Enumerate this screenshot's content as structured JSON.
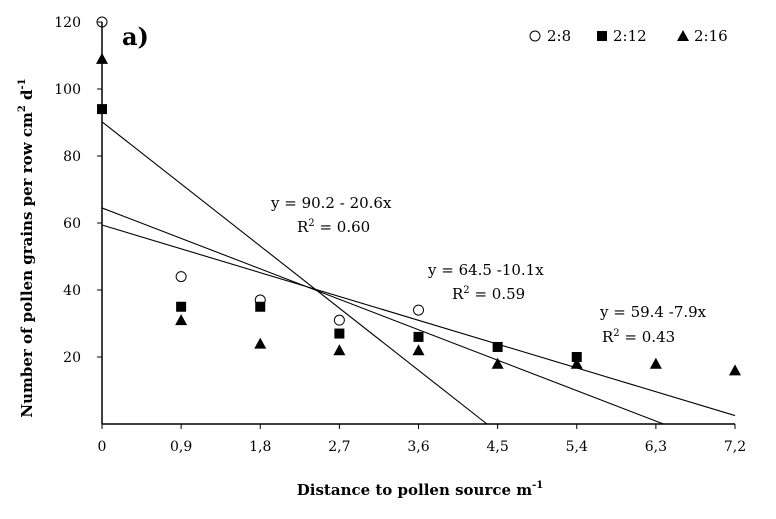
{
  "chart_data": {
    "type": "scatter",
    "panel_label": "a)",
    "xlabel": "Distance to pollen source m",
    "xlabel_sup": "-1",
    "ylabel_parts": [
      "Number of pollen grains per row cm",
      "2",
      " d",
      "-1"
    ],
    "x": [
      0,
      0.9,
      1.8,
      2.7,
      3.6,
      4.5,
      5.4,
      6.3,
      7.2
    ],
    "xtick_labels": [
      "0",
      "0,9",
      "1,8",
      "2,7",
      "3,6",
      "4,5",
      "5,4",
      "6,3",
      "7,2"
    ],
    "yticks": [
      20,
      40,
      60,
      80,
      100,
      120
    ],
    "ytick_labels": [
      "20",
      "40",
      "60",
      "80",
      "100",
      "120"
    ],
    "xlim": [
      0,
      7.2
    ],
    "ylim": [
      0,
      120
    ],
    "series": [
      {
        "name": "2:8",
        "marker": "circle-open",
        "points": [
          [
            0,
            120
          ],
          [
            0.9,
            44
          ],
          [
            1.8,
            37
          ],
          [
            2.7,
            31
          ],
          [
            3.6,
            34
          ]
        ]
      },
      {
        "name": "2:12",
        "marker": "square-filled",
        "points": [
          [
            0,
            94
          ],
          [
            0.9,
            35
          ],
          [
            1.8,
            35
          ],
          [
            2.7,
            27
          ],
          [
            3.6,
            26
          ],
          [
            4.5,
            23
          ],
          [
            5.4,
            20
          ]
        ]
      },
      {
        "name": "2:16",
        "marker": "triangle-filled",
        "points": [
          [
            0,
            109
          ],
          [
            0.9,
            31
          ],
          [
            1.8,
            24
          ],
          [
            2.7,
            22
          ],
          [
            3.6,
            22
          ],
          [
            4.5,
            18
          ],
          [
            5.4,
            18
          ],
          [
            6.3,
            18
          ],
          [
            7.2,
            16
          ]
        ]
      }
    ],
    "trendlines": [
      {
        "intercept": 90.2,
        "slope": -20.6,
        "x_start": 0,
        "equation": "y = 90.2 - 20.6x",
        "r2_label": "R",
        "r2_sup": "2",
        "r2_value": " = 0.60"
      },
      {
        "intercept": 64.5,
        "slope": -10.1,
        "x_start": 0,
        "equation": "y = 64.5 -10.1x",
        "r2_label": "R",
        "r2_sup": "2",
        "r2_value": " = 0.59"
      },
      {
        "intercept": 59.4,
        "slope": -7.9,
        "x_start": 0,
        "equation": "y = 59.4 -7.9x",
        "r2_label": "R",
        "r2_sup": "2",
        "r2_value": " = 0.43"
      }
    ],
    "legend": [
      "2:8",
      "2:12",
      "2:16"
    ]
  }
}
